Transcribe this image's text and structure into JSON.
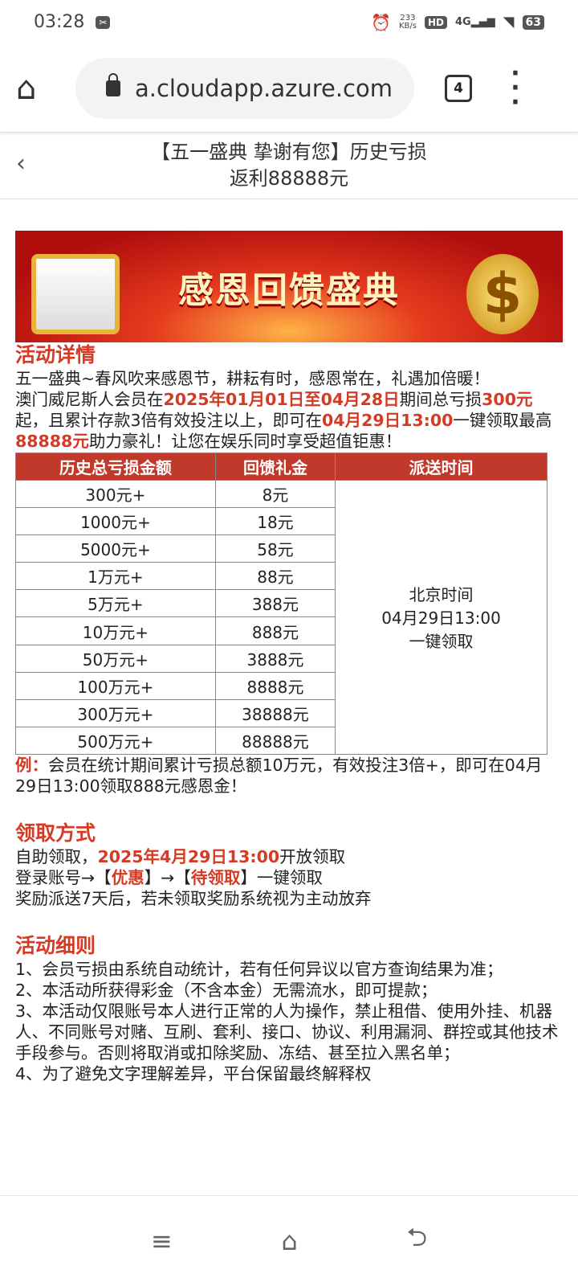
{
  "status_bar": {
    "time": "03:28",
    "speed": "233",
    "speed_unit": "KB/s",
    "hd": "HD",
    "network": "4G",
    "battery": "63"
  },
  "browser": {
    "url": "a.cloudapp.azure.com",
    "tab_count": "4"
  },
  "header": {
    "title_line1": "【五一盛典 挚谢有您】历史亏损",
    "title_line2": "返利88888元"
  },
  "banner": {
    "text": "感恩回馈盛典"
  },
  "details": {
    "title": "活动详情",
    "line1": "五一盛典~春风吹来感恩节，耕耘有时，感恩常在，礼遇加倍暖！",
    "p2_a": "澳门威尼斯人会员在",
    "p2_b": "2025年01月01日至04月28日",
    "p2_c": "期间总亏损",
    "p2_d": "300元",
    "p2_e": "起，且累计存款3倍有效投注以上，即可在",
    "p2_f": "04月29日13:00",
    "p2_g": "一键领取最高",
    "p2_h": "88888元",
    "p2_i": "助力豪礼！让您在娱乐同时享受超值钜惠！"
  },
  "table": {
    "headers": [
      "历史总亏损金额",
      "回馈礼金",
      "派送时间"
    ],
    "rows": [
      [
        "300元+",
        "8元"
      ],
      [
        "1000元+",
        "18元"
      ],
      [
        "5000元+",
        "58元"
      ],
      [
        "1万元+",
        "88元"
      ],
      [
        "5万元+",
        "388元"
      ],
      [
        "10万元+",
        "888元"
      ],
      [
        "50万元+",
        "3888元"
      ],
      [
        "100万元+",
        "8888元"
      ],
      [
        "300万元+",
        "38888元"
      ],
      [
        "500万元+",
        "88888元"
      ]
    ],
    "delivery": [
      "北京时间",
      "04月29日13:00",
      "一键领取"
    ]
  },
  "example": {
    "label": "例：",
    "text": "会员在统计期间累计亏损总额10万元，有效投注3倍+，即可在04月29日13:00领取888元感恩金！"
  },
  "claim": {
    "title": "领取方式",
    "l1_a": "自助领取，",
    "l1_b": "2025年4月29日13:00",
    "l1_c": "开放领取",
    "l2_a": "登录账号→【",
    "l2_b": "优惠",
    "l2_c": "】→【",
    "l2_d": "待领取",
    "l2_e": "】一键领取",
    "l3": "奖励派送7天后，若未领取奖励系统视为主动放弃"
  },
  "rules": {
    "title": "活动细则",
    "items": [
      "1、会员亏损由系统自动统计，若有任何异议以官方查询结果为准；",
      "2、本活动所获得彩金（不含本金）无需流水，即可提款；",
      "3、本活动仅限账号本人进行正常的人为操作，禁止租借、使用外挂、机器人、不同账号对赌、互刷、套利、接口、协议、利用漏洞、群控或其他技术手段参与。否则将取消或扣除奖励、冻结、甚至拉入黑名单；",
      "4、为了避免文字理解差异，平台保留最终解释权"
    ]
  }
}
